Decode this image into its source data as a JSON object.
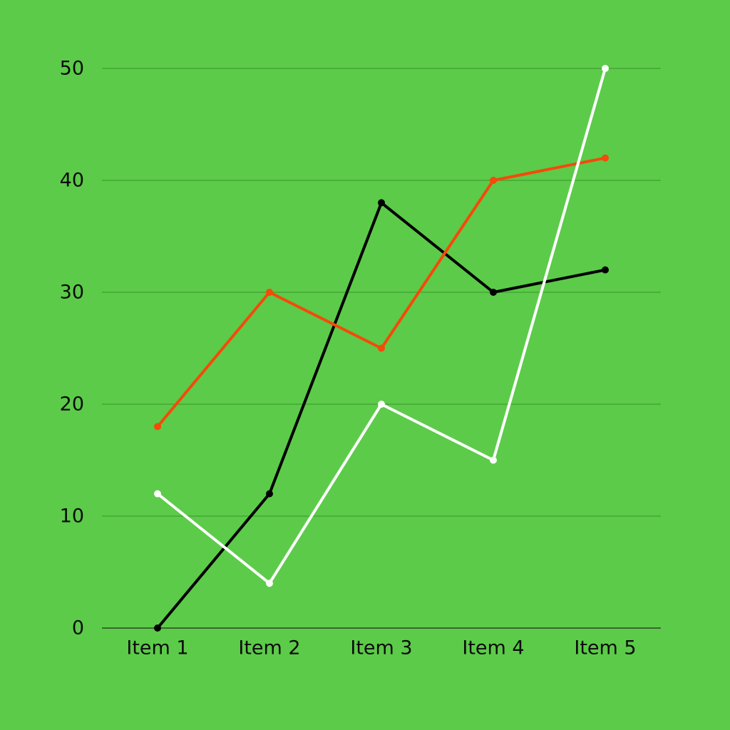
{
  "colors": {
    "background": "#5ccb49",
    "gridline": "#3f9f33",
    "axis": "#1f2f1a",
    "series_colors": [
      "#000000",
      "#f44a0a",
      "#ffffff"
    ]
  },
  "chart_data": {
    "type": "line",
    "title": "",
    "xlabel": "",
    "ylabel": "",
    "categories": [
      "Item 1",
      "Item 2",
      "Item 3",
      "Item 4",
      "Item 5"
    ],
    "ylim": [
      0,
      50
    ],
    "yticks": [
      0,
      10,
      20,
      30,
      40,
      50
    ],
    "grid": true,
    "legend": "none",
    "series": [
      {
        "values": [
          0,
          12,
          38,
          30,
          32
        ]
      },
      {
        "values": [
          18,
          30,
          25,
          40,
          42
        ]
      },
      {
        "values": [
          12,
          4,
          20,
          15,
          50
        ]
      }
    ]
  }
}
